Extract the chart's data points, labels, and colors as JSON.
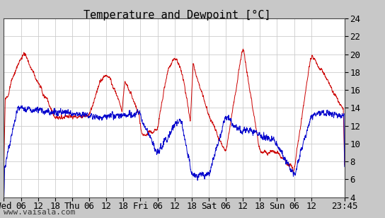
{
  "title": "Temperature and Dewpoint [°C]",
  "yticks": [
    4,
    6,
    8,
    10,
    12,
    14,
    16,
    18,
    20,
    22,
    24
  ],
  "ylim": [
    4,
    24
  ],
  "xtick_labels": [
    "Wed",
    "06",
    "12",
    "18",
    "Thu",
    "06",
    "12",
    "18",
    "Fri",
    "06",
    "12",
    "18",
    "Sat",
    "06",
    "12",
    "18",
    "Sun",
    "06",
    "12",
    "23:45"
  ],
  "xtick_positions": [
    0,
    6,
    12,
    18,
    24,
    30,
    36,
    42,
    48,
    54,
    60,
    66,
    72,
    78,
    84,
    90,
    96,
    102,
    108,
    119.75
  ],
  "total_hours": 119.75,
  "grid_color": "#cccccc",
  "plot_bg": "#ffffff",
  "outer_bg": "#c8c8c8",
  "temp_color": "#cc0000",
  "dew_color": "#0000cc",
  "watermark": "www.vaisala.com",
  "title_fontsize": 11,
  "axis_fontsize": 9,
  "watermark_fontsize": 8
}
